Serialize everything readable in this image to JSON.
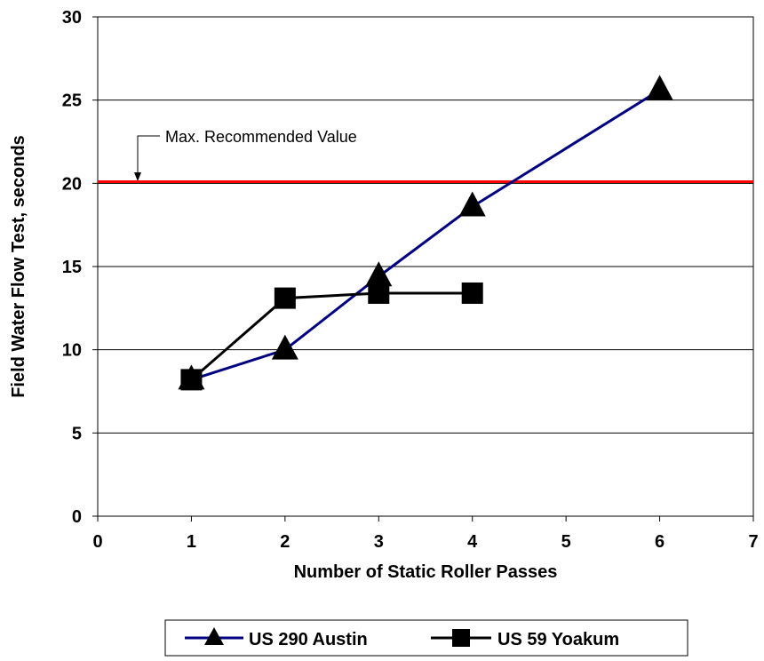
{
  "chart_data": {
    "type": "line",
    "title": "",
    "xlabel": "Number of Static Roller Passes",
    "ylabel": "Field Water Flow Test, seconds",
    "xlim": [
      0,
      7
    ],
    "ylim": [
      0,
      30
    ],
    "x_ticks": [
      "0",
      "1",
      "2",
      "3",
      "4",
      "5",
      "6",
      "7"
    ],
    "y_ticks": [
      "0",
      "5",
      "10",
      "15",
      "20",
      "25",
      "30"
    ],
    "grid": "horizontal",
    "legend_position": "bottom",
    "series": [
      {
        "name": "US 290 Austin",
        "color": "#000080",
        "marker": "triangle",
        "x": [
          1,
          2,
          3,
          4,
          6
        ],
        "y": [
          8.2,
          10.0,
          14.4,
          18.6,
          25.6
        ]
      },
      {
        "name": "US 59 Yoakum",
        "color": "#000000",
        "marker": "square",
        "x": [
          1,
          2,
          3,
          4
        ],
        "y": [
          8.2,
          13.1,
          13.4,
          13.4
        ]
      }
    ],
    "reference_line": {
      "label": "Max. Recommended Value",
      "y": 20.1,
      "color": "#ff0000"
    }
  }
}
